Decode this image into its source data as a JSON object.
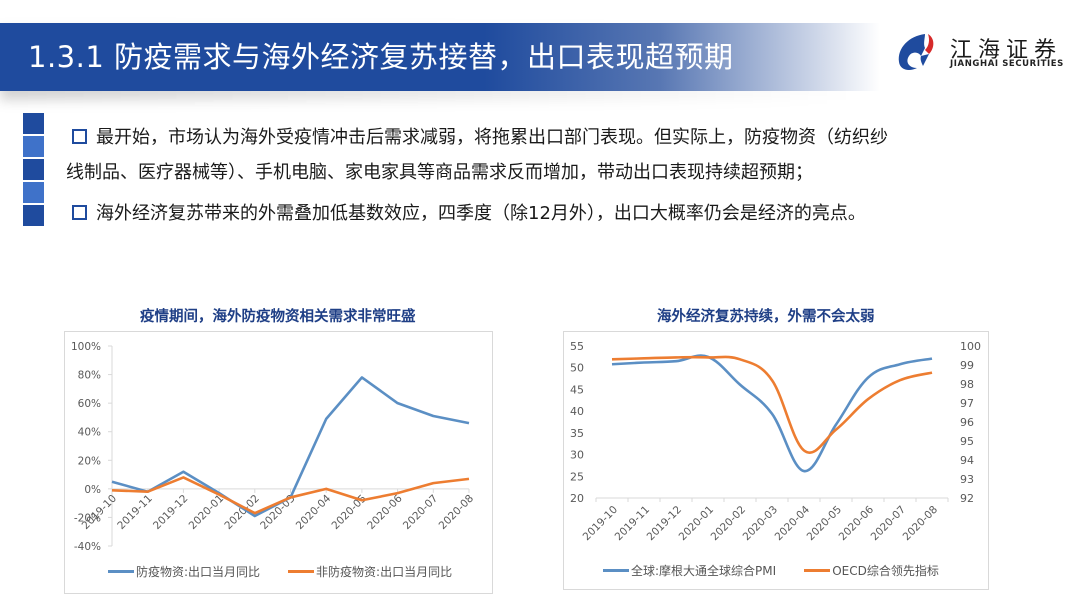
{
  "header": {
    "title": "1.3.1 防疫需求与海外经济复苏接替，出口表现超预期",
    "bar_color": "#1f4b9e"
  },
  "logo": {
    "name_cn": "江海证券",
    "name_en": "JIANGHAI SECURITIES",
    "mark_colors": [
      "#1f4b9e",
      "#d62a2a"
    ]
  },
  "bullets": [
    {
      "lines": [
        "最开始，市场认为海外受疫情冲击后需求减弱，将拖累出口部门表现。但实际上，防疫物资（纺织纱",
        "线制品、医疗器械等）、手机电脑、家电家具等商品需求反而增加，带动出口表现持续超预期；"
      ]
    },
    {
      "lines": [
        "海外经济复苏带来的外需叠加低基数效应，四季度（除12月外），出口大概率仍会是经济的亮点。"
      ]
    }
  ],
  "chart_data": [
    {
      "type": "line",
      "title": "疫情期间，海外防疫物资相关需求非常旺盛",
      "categories": [
        "2019-10",
        "2019-11",
        "2019-12",
        "2020-01",
        "2020-02",
        "2020-03",
        "2020-04",
        "2020-05",
        "2020-06",
        "2020-07",
        "2020-08"
      ],
      "series": [
        {
          "name": "防疫物资:出口当月同比",
          "color": "#5b8fc4",
          "values": [
            5,
            -2,
            12,
            -3,
            -19,
            -6,
            49,
            78,
            60,
            51,
            46
          ]
        },
        {
          "name": "非防疫物资:出口当月同比",
          "color": "#ed7d31",
          "values": [
            -1,
            -2,
            8,
            -4,
            -17,
            -6,
            0,
            -8,
            -3,
            4,
            7
          ]
        }
      ],
      "ylim": [
        -40,
        100
      ],
      "yticks": [
        "100%",
        "80%",
        "60%",
        "40%",
        "20%",
        "0%",
        "-20%",
        "-40%"
      ],
      "ytick_values": [
        100,
        80,
        60,
        40,
        20,
        0,
        -20,
        -40
      ],
      "xlabel": "",
      "ylabel": "",
      "legend_position": "bottom",
      "grid": false
    },
    {
      "type": "line",
      "title": "海外经济复苏持续，外需不会太弱",
      "categories": [
        "2019-10",
        "2019-11",
        "2019-12",
        "2020-01",
        "2020-02",
        "2020-03",
        "2020-04",
        "2020-05",
        "2020-06",
        "2020-07",
        "2020-08"
      ],
      "series": [
        {
          "name": "全球:摩根大通全球综合PMI",
          "axis": "left",
          "color": "#5b8fc4",
          "values": [
            50.8,
            51.2,
            51.5,
            52.5,
            46.1,
            39.4,
            26.2,
            36.9,
            47.7,
            50.8,
            52.1
          ]
        },
        {
          "name": "OECD综合领先指标",
          "axis": "right",
          "color": "#ed7d31",
          "values": [
            99.3,
            99.35,
            99.4,
            99.4,
            99.3,
            98.2,
            94.5,
            95.6,
            97.2,
            98.2,
            98.6
          ]
        }
      ],
      "ylim_left": [
        20,
        55
      ],
      "yticks_left": [
        "55",
        "50",
        "45",
        "40",
        "35",
        "30",
        "25",
        "20"
      ],
      "ylim_right": [
        92,
        100
      ],
      "yticks_right": [
        "100",
        "99",
        "98",
        "97",
        "96",
        "95",
        "94",
        "93",
        "92"
      ],
      "xlabel": "",
      "ylabel": "",
      "legend_position": "bottom",
      "grid": false
    }
  ]
}
